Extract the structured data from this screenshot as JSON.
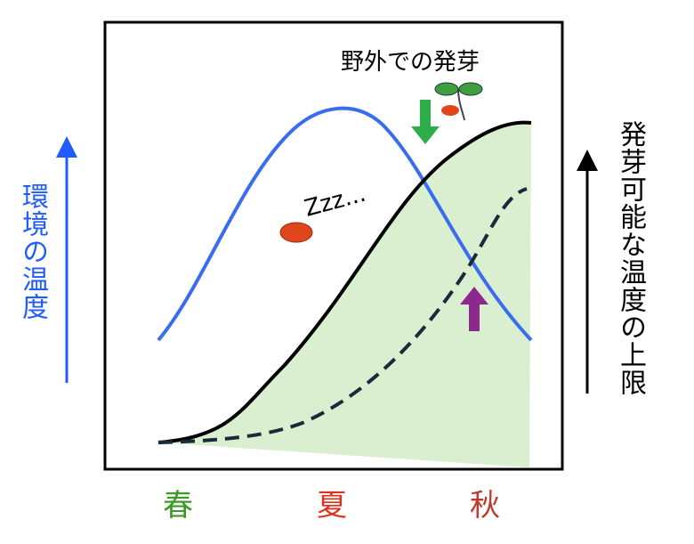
{
  "left_axis_label": "環境の温度",
  "right_axis_label": "発芽可能な温度の上限",
  "annotation_germination": "野外での発芽",
  "sleep_text": "Zzz...",
  "seasons": [
    "春",
    "夏",
    "秋"
  ]
}
